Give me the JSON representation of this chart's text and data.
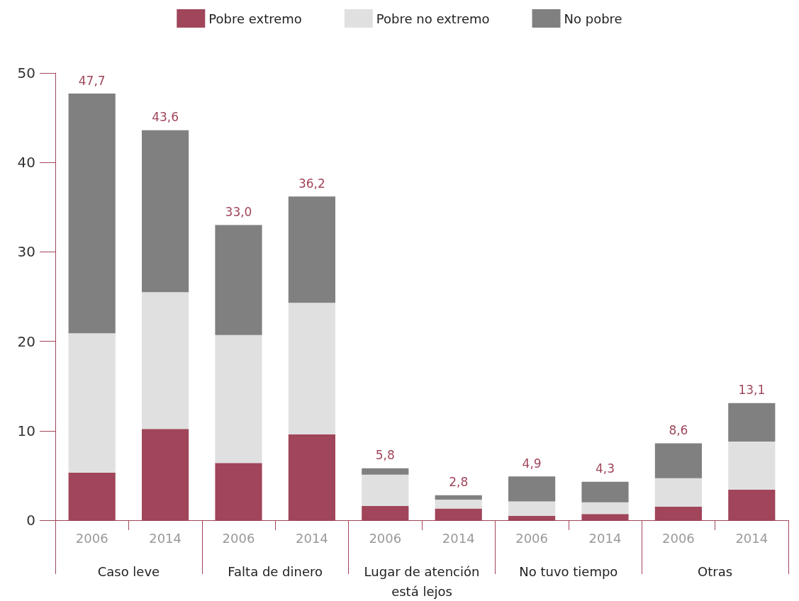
{
  "chart_data": {
    "type": "bar",
    "stacked": true,
    "categories": [
      "2006",
      "2014",
      "2006",
      "2014",
      "2006",
      "2014",
      "2006",
      "2014",
      "2006",
      "2014"
    ],
    "series": [
      {
        "name": "Pobre extremo",
        "color": "#a0455a",
        "values": [
          5.3,
          10.2,
          6.4,
          9.6,
          1.6,
          1.3,
          0.5,
          0.7,
          1.5,
          3.4
        ]
      },
      {
        "name": "Pobre no extremo",
        "color": "#e0e0e0",
        "values": [
          15.6,
          15.3,
          14.3,
          14.7,
          3.5,
          1.0,
          1.6,
          1.3,
          3.2,
          5.4
        ]
      },
      {
        "name": "No pobre",
        "color": "#808080",
        "values": [
          26.8,
          18.1,
          12.3,
          11.9,
          0.7,
          0.5,
          2.8,
          2.3,
          3.9,
          4.3
        ]
      }
    ],
    "totals": [
      "47,7",
      "43,6",
      "33,0",
      "36,2",
      "5,8",
      "2,8",
      "4,9",
      "4,3",
      "8,6",
      "13,1"
    ],
    "annotations": [
      "Caso leve",
      "Falta de dinero",
      "Lugar de atención\nestá lejos",
      "No tuvo tiempo",
      "Otras"
    ],
    "ylim": [
      0,
      50
    ],
    "yticks": [
      0,
      10,
      20,
      30,
      40,
      50
    ],
    "grid": false,
    "legend": "top"
  }
}
